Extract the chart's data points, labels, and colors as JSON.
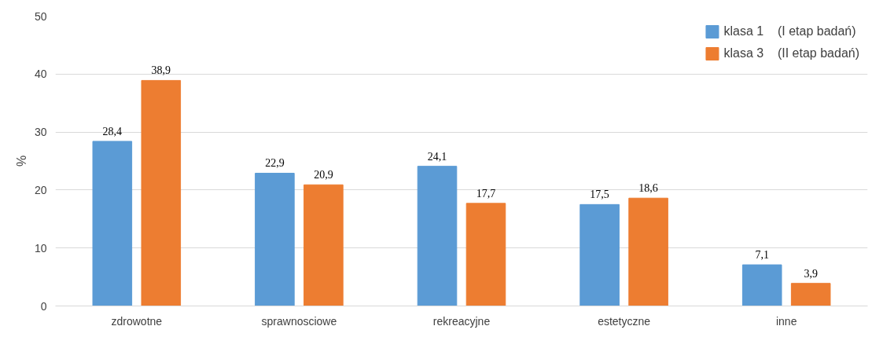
{
  "chart_data": {
    "type": "bar",
    "ylabel": "%",
    "categories": [
      "zdrowotne",
      "sprawnosciowe",
      "rekreacyjne",
      "estetyczne",
      "inne"
    ],
    "series": [
      {
        "name": "klasa 1    (I etap badań)",
        "color": "#5b9bd5",
        "values": [
          28.4,
          22.9,
          24.1,
          17.5,
          7.1
        ],
        "value_labels": [
          "28,4",
          "22,9",
          "24,1",
          "17,5",
          "7,1"
        ]
      },
      {
        "name": "klasa 3    (II etap badań)",
        "color": "#ed7d31",
        "values": [
          38.9,
          20.9,
          17.7,
          18.6,
          3.9
        ],
        "value_labels": [
          "38,9",
          "20,9",
          "17,7",
          "18,6",
          "3,9"
        ]
      }
    ],
    "ylim": [
      0,
      50
    ],
    "yticks": [
      0,
      10,
      20,
      30,
      40,
      50
    ],
    "grid": "y",
    "legend": "top right"
  }
}
